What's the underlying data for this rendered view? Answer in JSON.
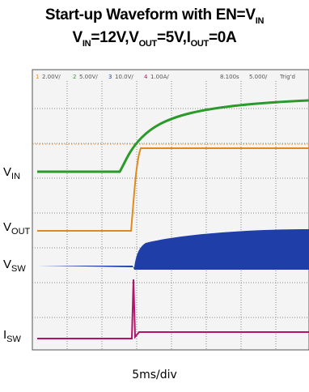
{
  "title": {
    "line1": {
      "text": "Start-up Waveform with EN=V",
      "sub": "IN"
    },
    "line2": [
      {
        "text": "V",
        "sub": "IN"
      },
      {
        "text": "=12V,V",
        "sub": "OUT"
      },
      {
        "text": "=5V,I",
        "sub": "OUT"
      },
      {
        "text": "=0A"
      }
    ]
  },
  "scope_header": {
    "ch1": "1",
    "ch1_scale": "2.00V/",
    "ch2": "2",
    "ch2_scale": "5.00V/",
    "ch3": "3",
    "ch3_scale": "10.0V/",
    "ch4": "4",
    "ch4_scale": "1.00A/",
    "position": "8.100s",
    "timebase": "5.000/",
    "status": "Trig'd"
  },
  "traces": [
    {
      "label": "V",
      "sub": "IN"
    },
    {
      "label": "V",
      "sub": "OUT"
    },
    {
      "label": "V",
      "sub": "SW"
    },
    {
      "label": "I",
      "sub": "SW"
    }
  ],
  "footer": "5ms/div"
}
